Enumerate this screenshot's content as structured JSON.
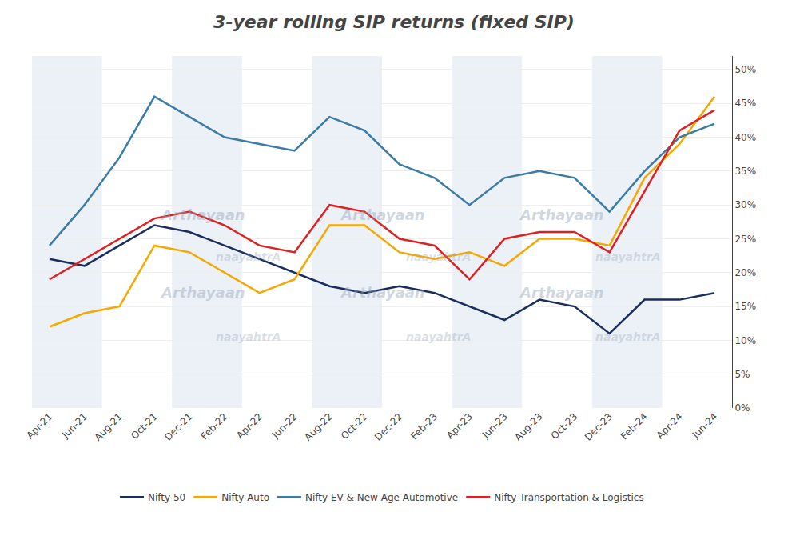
{
  "chart_data": {
    "type": "line",
    "title": "3-year rolling SIP returns (fixed SIP)",
    "categories": [
      "Apr-21",
      "Jun-21",
      "Aug-21",
      "Oct-21",
      "Dec-21",
      "Feb-22",
      "Apr-22",
      "Jun-22",
      "Aug-22",
      "Oct-22",
      "Dec-22",
      "Feb-23",
      "Apr-23",
      "Jun-23",
      "Aug-23",
      "Oct-23",
      "Dec-23",
      "Feb-24",
      "Apr-24",
      "Jun-24"
    ],
    "series": [
      {
        "name": "Nifty 50",
        "color": "#1a2e5e",
        "values": [
          22,
          21,
          24,
          27,
          26,
          24,
          22,
          20,
          18,
          17,
          18,
          17,
          15,
          13,
          16,
          15,
          11,
          16,
          16,
          17
        ]
      },
      {
        "name": "Nifty Auto",
        "color": "#f5a800",
        "values": [
          12,
          14,
          15,
          24,
          23,
          20,
          17,
          19,
          27,
          27,
          23,
          22,
          23,
          21,
          25,
          25,
          24,
          34,
          39,
          46
        ]
      },
      {
        "name": "Nifty EV & New Age Automotive",
        "color": "#3a7ca5",
        "values": [
          24,
          30,
          37,
          46,
          43,
          40,
          39,
          38,
          43,
          41,
          36,
          34,
          30,
          34,
          35,
          34,
          29,
          35,
          40,
          42
        ]
      },
      {
        "name": "Nifty Transportation & Logistics",
        "color": "#e02020",
        "values": [
          19,
          22,
          25,
          28,
          29,
          27,
          24,
          23,
          30,
          29,
          25,
          24,
          19,
          25,
          26,
          26,
          23,
          32,
          41,
          44
        ]
      }
    ],
    "ylim": [
      0,
      52
    ],
    "yticks": [
      {
        "value": 0,
        "label": "0%"
      },
      {
        "value": 5,
        "label": "5%"
      },
      {
        "value": 10,
        "label": "10%"
      },
      {
        "value": 15,
        "label": "15%"
      },
      {
        "value": 20,
        "label": "20%"
      },
      {
        "value": 25,
        "label": "25%"
      },
      {
        "value": 30,
        "label": "30%"
      },
      {
        "value": 35,
        "label": "35%"
      },
      {
        "value": 40,
        "label": "40%"
      },
      {
        "value": 45,
        "label": "45%"
      },
      {
        "value": 50,
        "label": "50%"
      }
    ],
    "annotations": [
      "Arthayaan",
      "naayahtrA"
    ],
    "grid": true,
    "legend": "bottom"
  }
}
